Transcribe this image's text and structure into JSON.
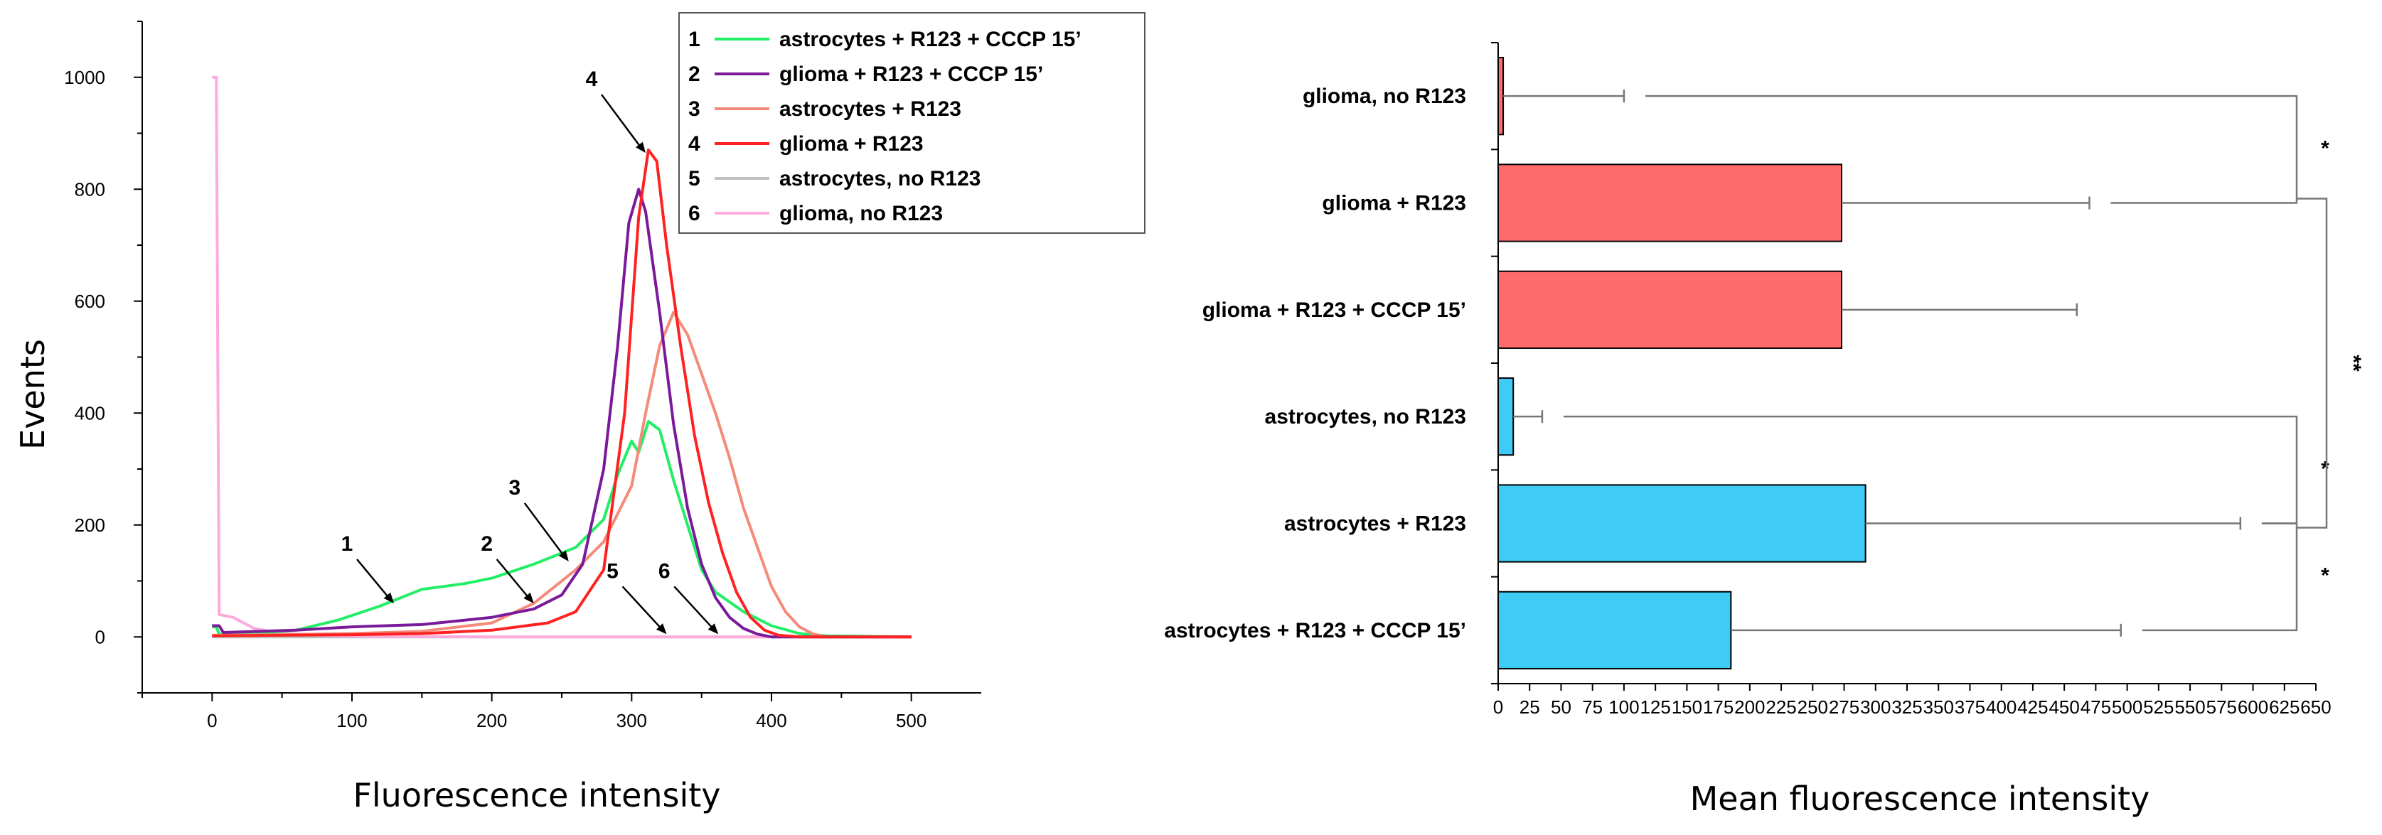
{
  "chart_data": [
    {
      "type": "line",
      "title": "",
      "xlabel": "Fluorescence intensity",
      "ylabel": "Events",
      "xlim": [
        -50,
        550
      ],
      "ylim": [
        -100,
        1100
      ],
      "xticks": [
        0,
        100,
        200,
        300,
        400,
        500
      ],
      "yticks": [
        0,
        200,
        400,
        600,
        800,
        1000
      ],
      "legend_position": "top-right",
      "series": [
        {
          "id": "1",
          "name": "astrocytes + R123 + CCCP 15’",
          "color": "#22ee66",
          "points": [
            [
              0,
              18
            ],
            [
              3,
              18
            ],
            [
              5,
              5
            ],
            [
              30,
              6
            ],
            [
              60,
              12
            ],
            [
              90,
              30
            ],
            [
              120,
              55
            ],
            [
              150,
              85
            ],
            [
              180,
              95
            ],
            [
              200,
              105
            ],
            [
              230,
              130
            ],
            [
              260,
              160
            ],
            [
              280,
              210
            ],
            [
              290,
              290
            ],
            [
              300,
              350
            ],
            [
              305,
              330
            ],
            [
              312,
              385
            ],
            [
              320,
              370
            ],
            [
              330,
              280
            ],
            [
              340,
              200
            ],
            [
              350,
              120
            ],
            [
              360,
              80
            ],
            [
              380,
              45
            ],
            [
              400,
              20
            ],
            [
              420,
              6
            ],
            [
              440,
              2
            ],
            [
              500,
              0
            ]
          ]
        },
        {
          "id": "2",
          "name": "glioma + R123 + CCCP 15’",
          "color": "#7a1a9a",
          "points": [
            [
              0,
              20
            ],
            [
              5,
              20
            ],
            [
              8,
              8
            ],
            [
              60,
              12
            ],
            [
              100,
              18
            ],
            [
              150,
              22
            ],
            [
              200,
              35
            ],
            [
              230,
              50
            ],
            [
              250,
              75
            ],
            [
              265,
              130
            ],
            [
              280,
              300
            ],
            [
              290,
              520
            ],
            [
              298,
              740
            ],
            [
              305,
              800
            ],
            [
              310,
              760
            ],
            [
              320,
              580
            ],
            [
              330,
              380
            ],
            [
              340,
              230
            ],
            [
              350,
              130
            ],
            [
              360,
              70
            ],
            [
              370,
              35
            ],
            [
              380,
              15
            ],
            [
              390,
              5
            ],
            [
              400,
              0
            ],
            [
              500,
              0
            ]
          ]
        },
        {
          "id": "3",
          "name": "astrocytes + R123",
          "color": "#f48a7a",
          "points": [
            [
              0,
              3
            ],
            [
              50,
              4
            ],
            [
              100,
              6
            ],
            [
              150,
              10
            ],
            [
              200,
              25
            ],
            [
              230,
              60
            ],
            [
              260,
              120
            ],
            [
              280,
              170
            ],
            [
              300,
              270
            ],
            [
              310,
              400
            ],
            [
              320,
              520
            ],
            [
              330,
              580
            ],
            [
              340,
              540
            ],
            [
              350,
              470
            ],
            [
              360,
              400
            ],
            [
              370,
              320
            ],
            [
              380,
              230
            ],
            [
              390,
              160
            ],
            [
              400,
              90
            ],
            [
              410,
              45
            ],
            [
              420,
              18
            ],
            [
              430,
              5
            ],
            [
              440,
              0
            ],
            [
              500,
              0
            ]
          ]
        },
        {
          "id": "4",
          "name": "glioma + R123",
          "color": "#ff2222",
          "points": [
            [
              0,
              2
            ],
            [
              50,
              3
            ],
            [
              100,
              4
            ],
            [
              150,
              6
            ],
            [
              200,
              12
            ],
            [
              240,
              25
            ],
            [
              260,
              45
            ],
            [
              280,
              120
            ],
            [
              295,
              400
            ],
            [
              305,
              750
            ],
            [
              312,
              870
            ],
            [
              318,
              850
            ],
            [
              325,
              700
            ],
            [
              335,
              520
            ],
            [
              345,
              360
            ],
            [
              355,
              240
            ],
            [
              365,
              150
            ],
            [
              375,
              80
            ],
            [
              385,
              35
            ],
            [
              395,
              12
            ],
            [
              405,
              3
            ],
            [
              420,
              0
            ],
            [
              500,
              0
            ]
          ]
        },
        {
          "id": "5",
          "name": "astrocytes, no R123",
          "color": "#c0c0c0",
          "points": [
            [
              0,
              0
            ],
            [
              100,
              0
            ],
            [
              200,
              0
            ],
            [
              300,
              0
            ],
            [
              400,
              0
            ],
            [
              500,
              0
            ]
          ]
        },
        {
          "id": "6",
          "name": "glioma, no R123",
          "color": "#ffaadd",
          "points": [
            [
              0,
              1000
            ],
            [
              3,
              1000
            ],
            [
              5,
              40
            ],
            [
              15,
              35
            ],
            [
              30,
              15
            ],
            [
              50,
              6
            ],
            [
              80,
              3
            ],
            [
              120,
              1
            ],
            [
              200,
              0
            ],
            [
              500,
              0
            ]
          ]
        }
      ],
      "annotations": [
        {
          "label": "1",
          "x": 130,
          "y": 60
        },
        {
          "label": "2",
          "x": 230,
          "y": 60
        },
        {
          "label": "3",
          "x": 255,
          "y": 135
        },
        {
          "label": "4",
          "x": 310,
          "y": 865
        },
        {
          "label": "5",
          "x": 325,
          "y": 5
        },
        {
          "label": "6",
          "x": 362,
          "y": 5
        }
      ]
    },
    {
      "type": "bar",
      "orientation": "horizontal",
      "title": "",
      "xlabel": "Mean fluorescence intensity",
      "ylabel": "",
      "xlim": [
        0,
        650
      ],
      "xticks": [
        0,
        25,
        50,
        75,
        100,
        125,
        150,
        175,
        200,
        225,
        250,
        275,
        300,
        325,
        350,
        375,
        400,
        425,
        450,
        475,
        500,
        525,
        550,
        575,
        600,
        625,
        650
      ],
      "categories": [
        "glioma, no R123",
        "glioma + R123",
        "glioma + R123 + CCCP 15’",
        "astrocytes, no R123",
        "astrocytes + R123",
        "astrocytes + R123 + CCCP 15’"
      ],
      "values": [
        4,
        273,
        273,
        12,
        292,
        185
      ],
      "errors": [
        100,
        470,
        460,
        35,
        590,
        495
      ],
      "colors": [
        "#ff6b6b",
        "#ff6b6b",
        "#ff6b6b",
        "#3ecbf5",
        "#3ecbf5",
        "#3ecbf5"
      ],
      "significance": [
        {
          "from": "glioma, no R123",
          "to": "glioma + R123",
          "label": "*"
        },
        {
          "from": "astrocytes, no R123",
          "to": "astrocytes + R123",
          "label": "*"
        },
        {
          "from": "astrocytes + R123",
          "to": "astrocytes + R123 + CCCP 15’",
          "label": "*"
        },
        {
          "from": "glioma + R123",
          "to": "astrocytes + R123",
          "label": "**"
        }
      ]
    }
  ]
}
